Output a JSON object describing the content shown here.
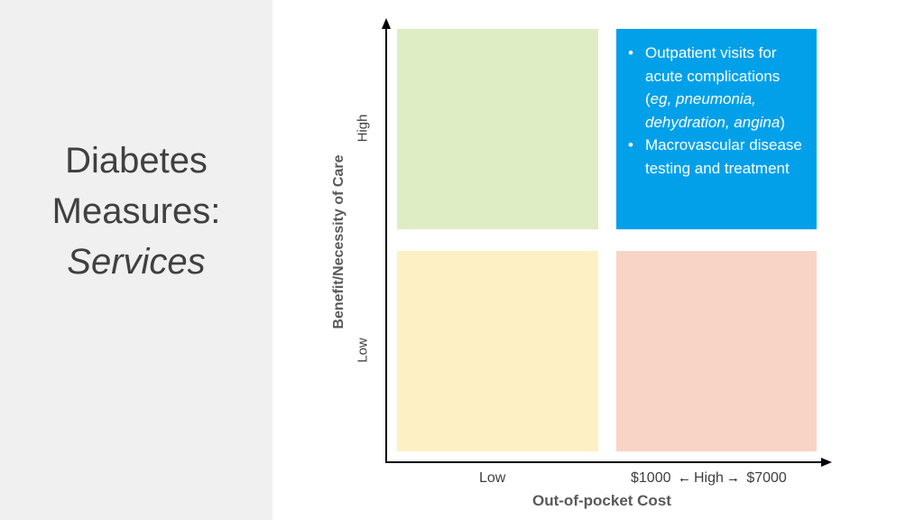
{
  "sidebar": {
    "title_line1": "Diabetes",
    "title_line2": "Measures:",
    "title_line3": "Services"
  },
  "y_axis": {
    "label": "Benefit/Necessity of Care",
    "high": "High",
    "low": "Low"
  },
  "x_axis": {
    "label": "Out-of-pocket Cost",
    "low": "Low",
    "high_prefix": "$1000",
    "high_word": "High",
    "high_suffix": "$7000",
    "left_arrow": "←",
    "right_arrow": "→"
  },
  "quadrants": {
    "top_right": {
      "bullet": "•",
      "item1_pre": "Outpatient visits for acute complications (",
      "item1_italic": "eg, pneumonia, dehydration, angina",
      "item1_post": ")",
      "item2": "Macrovascular disease testing and treatment"
    }
  },
  "colors": {
    "sidebar_bg": "#f0f0f0",
    "top_left": "#dfedc4",
    "top_right": "#03a0ea",
    "bottom_left": "#fdf0c4",
    "bottom_right": "#f7d4c6"
  }
}
